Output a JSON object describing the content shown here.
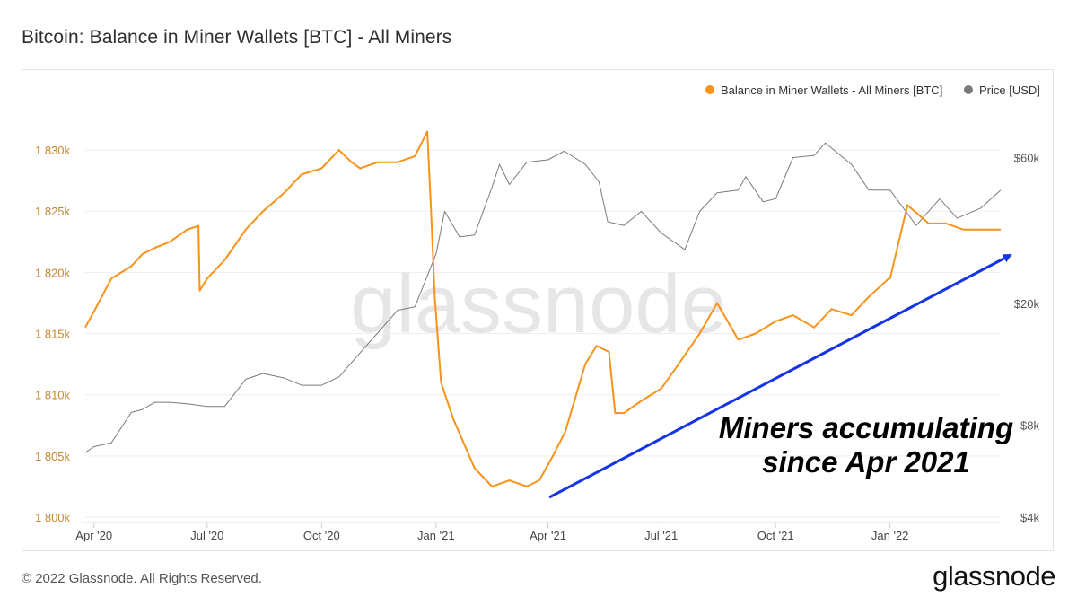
{
  "title": "Bitcoin: Balance in Miner Wallets [BTC] - All Miners",
  "footer": {
    "copyright": "© 2022 Glassnode. All Rights Reserved.",
    "brand": "glassnode"
  },
  "watermark": "glassnode",
  "annotation": {
    "line1": "Miners accumulating",
    "line2": "since Apr 2021"
  },
  "colors": {
    "balance": "#f7931a",
    "price": "#7a7a7a",
    "arrow": "#1534e8",
    "leftAxis": "#c9862a",
    "rightAxis": "#555555"
  },
  "chart_data": {
    "type": "line",
    "legend_position": "top-right",
    "legend": [
      {
        "label": "Balance in Miner Wallets - All Miners [BTC]",
        "color": "#f7931a"
      },
      {
        "label": "Price [USD]",
        "color": "#7a7a7a"
      }
    ],
    "x_ticks": [
      "Apr '20",
      "Jul '20",
      "Oct '20",
      "Jan '21",
      "Apr '21",
      "Jul '21",
      "Oct '21",
      "Jan '22"
    ],
    "x_tick_dates": [
      "2020-04-01",
      "2020-07-01",
      "2020-10-01",
      "2021-01-01",
      "2021-04-01",
      "2021-07-01",
      "2021-10-01",
      "2022-01-01"
    ],
    "xlim": [
      "2020-03-25",
      "2022-03-31"
    ],
    "y_left": {
      "ticks": [
        "1 800k",
        "1 805k",
        "1 810k",
        "1 815k",
        "1 820k",
        "1 825k",
        "1 830k"
      ],
      "values": [
        1800000,
        1805000,
        1810000,
        1815000,
        1820000,
        1825000,
        1830000
      ],
      "lim": [
        1800000,
        1832500
      ]
    },
    "y_right": {
      "scale": "log",
      "ticks": [
        "$4k",
        "$8k",
        "$20k",
        "$60k"
      ],
      "values": [
        4000,
        8000,
        20000,
        60000
      ],
      "lim": [
        4000,
        80000
      ]
    },
    "series": [
      {
        "name": "Balance in Miner Wallets - All Miners [BTC]",
        "axis": "left",
        "x": [
          "2020-03-25",
          "2020-04-01",
          "2020-04-15",
          "2020-05-01",
          "2020-05-10",
          "2020-05-20",
          "2020-06-01",
          "2020-06-15",
          "2020-06-24",
          "2020-06-25",
          "2020-07-01",
          "2020-07-15",
          "2020-08-01",
          "2020-08-15",
          "2020-09-01",
          "2020-09-15",
          "2020-10-01",
          "2020-10-15",
          "2020-10-25",
          "2020-11-01",
          "2020-11-15",
          "2020-12-01",
          "2020-12-15",
          "2020-12-25",
          "2020-12-28",
          "2020-12-31",
          "2021-01-05",
          "2021-01-15",
          "2021-02-01",
          "2021-02-15",
          "2021-03-01",
          "2021-03-15",
          "2021-03-25",
          "2021-04-05",
          "2021-04-15",
          "2021-05-01",
          "2021-05-10",
          "2021-05-20",
          "2021-05-25",
          "2021-06-01",
          "2021-06-15",
          "2021-07-01",
          "2021-07-15",
          "2021-08-01",
          "2021-08-15",
          "2021-09-01",
          "2021-09-15",
          "2021-10-01",
          "2021-10-15",
          "2021-11-01",
          "2021-11-15",
          "2021-12-01",
          "2021-12-15",
          "2021-12-31",
          "2022-01-01",
          "2022-01-15",
          "2022-02-01",
          "2022-02-15",
          "2022-03-01",
          "2022-03-31"
        ],
        "y": [
          1815500,
          1816800,
          1819500,
          1820500,
          1821500,
          1822000,
          1822500,
          1823500,
          1823800,
          1818500,
          1819500,
          1821000,
          1823500,
          1825000,
          1826500,
          1828000,
          1828500,
          1830000,
          1829000,
          1828500,
          1829000,
          1829000,
          1829500,
          1831500,
          1825000,
          1818000,
          1811000,
          1808000,
          1804000,
          1802500,
          1803000,
          1802500,
          1803000,
          1805000,
          1807000,
          1812500,
          1814000,
          1813500,
          1808500,
          1808500,
          1809500,
          1810500,
          1812500,
          1815000,
          1817500,
          1814500,
          1815000,
          1816000,
          1816500,
          1815500,
          1817000,
          1816500,
          1818000,
          1819500,
          1819500,
          1825500,
          1824000,
          1824000,
          1823500,
          1823500
        ]
      },
      {
        "name": "Price [USD]",
        "axis": "right",
        "x": [
          "2020-03-25",
          "2020-04-01",
          "2020-04-15",
          "2020-05-01",
          "2020-05-10",
          "2020-05-20",
          "2020-06-01",
          "2020-06-15",
          "2020-07-01",
          "2020-07-15",
          "2020-08-01",
          "2020-08-15",
          "2020-09-01",
          "2020-09-15",
          "2020-10-01",
          "2020-10-15",
          "2020-11-01",
          "2020-11-15",
          "2020-12-01",
          "2020-12-15",
          "2021-01-01",
          "2021-01-08",
          "2021-01-20",
          "2021-02-01",
          "2021-02-15",
          "2021-02-21",
          "2021-03-01",
          "2021-03-15",
          "2021-04-01",
          "2021-04-14",
          "2021-05-01",
          "2021-05-12",
          "2021-05-19",
          "2021-06-01",
          "2021-06-15",
          "2021-07-01",
          "2021-07-20",
          "2021-08-01",
          "2021-08-15",
          "2021-09-01",
          "2021-09-07",
          "2021-09-21",
          "2021-10-01",
          "2021-10-15",
          "2021-11-01",
          "2021-11-10",
          "2021-12-01",
          "2021-12-15",
          "2022-01-01",
          "2022-01-22",
          "2022-02-10",
          "2022-02-24",
          "2022-03-15",
          "2022-03-31"
        ],
        "y": [
          6500,
          6800,
          7000,
          8800,
          9000,
          9500,
          9500,
          9400,
          9200,
          9200,
          11300,
          11800,
          11400,
          10800,
          10800,
          11500,
          13800,
          16000,
          19000,
          19500,
          29000,
          40000,
          33000,
          33500,
          48000,
          57000,
          49000,
          58000,
          59000,
          63000,
          57000,
          50000,
          37000,
          36000,
          40000,
          34000,
          30000,
          40000,
          46000,
          47000,
          52000,
          43000,
          44000,
          60000,
          61000,
          67000,
          57000,
          47000,
          47000,
          36000,
          44000,
          38000,
          41000,
          47000
        ]
      }
    ]
  }
}
